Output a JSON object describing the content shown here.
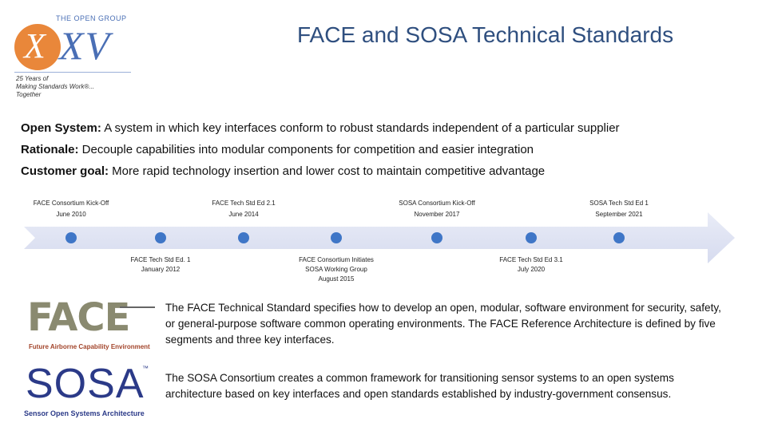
{
  "logo": {
    "org": "THE OPEN GROUP",
    "mark_x": "X",
    "mark_xv": "XV",
    "tagline": [
      "25 Years of",
      "Making Standards Work®...",
      "Together"
    ]
  },
  "title": "FACE and SOSA Technical Standards",
  "definitions": [
    {
      "term": "Open System:",
      "text": " A system in which key interfaces conform to robust standards independent of a particular supplier"
    },
    {
      "term": "Rationale:",
      "text": " Decouple capabilities into modular components for competition and easier integration"
    },
    {
      "term": "Customer goal:",
      "text": " More rapid technology insertion and lower cost to maintain competitive advantage"
    }
  ],
  "timeline": {
    "events": [
      {
        "label": "FACE Consortium Kick-Off",
        "date": "June 2010"
      },
      {
        "label": "FACE Tech Std Ed. 1",
        "date": "January 2012"
      },
      {
        "label": "FACE Tech Std Ed 2.1",
        "date": "June 2014"
      },
      {
        "label": "FACE Consortium Initiates",
        "label2": "SOSA Working Group",
        "date": "August 2015"
      },
      {
        "label": "SOSA Consortium Kick-Off",
        "date": "November 2017"
      },
      {
        "label": "FACE Tech Std Ed 3.1",
        "date": "July 2020"
      },
      {
        "label": "SOSA Tech Std Ed 1",
        "date": "September 2021"
      }
    ],
    "colors": {
      "arrow": "#dfe3f3",
      "dot": "#3f76c7"
    }
  },
  "face": {
    "logo_word": "FACE",
    "logo_sub": "Future Airborne Capability Environment",
    "description": "The FACE Technical Standard specifies how to develop an open, modular, software environment for security, safety, or general-purpose software common operating environments. The FACE Reference Architecture is defined by five segments and three key interfaces."
  },
  "sosa": {
    "logo_word": "SOSA",
    "logo_tm": "™",
    "logo_sub": "Sensor Open Systems Architecture",
    "description": "The SOSA Consortium creates a common framework for transitioning sensor systems to an open systems architecture based on key interfaces and open standards established by industry-government consensus."
  }
}
